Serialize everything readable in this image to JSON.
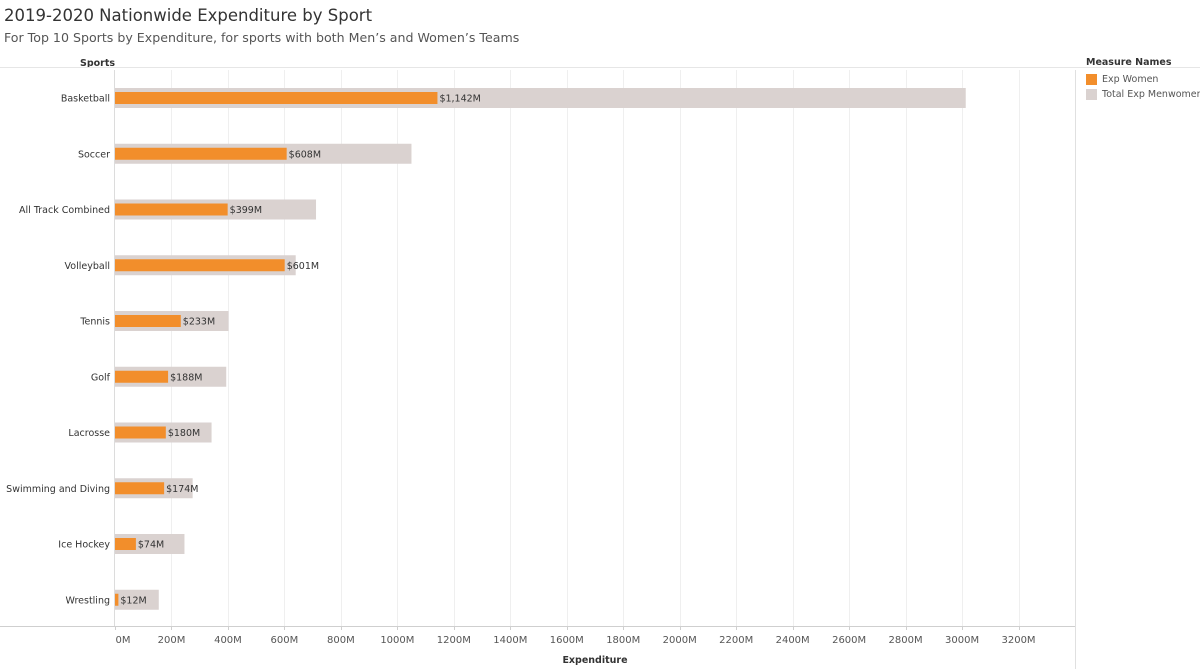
{
  "title": "2019-2020 Nationwide Expenditure by Sport",
  "subtitle": "For Top 10 Sports by Expenditure, for sports with both Men’s and Women’s Teams",
  "legend": {
    "title": "Measure Names",
    "items": [
      {
        "label": "Exp Women",
        "color": "#f28e2b"
      },
      {
        "label": "Total Exp Menwomen",
        "color": "#dad2d0"
      }
    ]
  },
  "chart_data": {
    "type": "bar",
    "orientation": "horizontal",
    "row_header": "Sports",
    "xlabel": "Expenditure",
    "xlim": [
      0,
      3400
    ],
    "xticks": [
      0,
      200,
      400,
      600,
      800,
      1000,
      1200,
      1400,
      1600,
      1800,
      2000,
      2200,
      2400,
      2600,
      2800,
      3000,
      3200
    ],
    "xtick_labels": [
      "0M",
      "200M",
      "400M",
      "600M",
      "800M",
      "1000M",
      "1200M",
      "1400M",
      "1600M",
      "1800M",
      "2000M",
      "2200M",
      "2400M",
      "2600M",
      "2800M",
      "3000M",
      "3200M"
    ],
    "grid": true,
    "legend_position": "right",
    "categories": [
      "Basketball",
      "Soccer",
      "All Track Combined",
      "Volleyball",
      "Tennis",
      "Golf",
      "Lacrosse",
      "Swimming and Diving",
      "Ice Hockey",
      "Wrestling"
    ],
    "series": [
      {
        "name": "Total Exp Menwomen",
        "color": "#dad2d0",
        "values": [
          3013,
          1050,
          712,
          640,
          402,
          394,
          342,
          275,
          246,
          155
        ]
      },
      {
        "name": "Exp Women",
        "color": "#f28e2b",
        "values": [
          1142,
          608,
          399,
          601,
          233,
          188,
          180,
          174,
          74,
          12
        ],
        "data_labels": [
          "$1,142M",
          "$608M",
          "$399M",
          "$601M",
          "$233M",
          "$188M",
          "$180M",
          "$174M",
          "$74M",
          "$12M"
        ]
      }
    ]
  }
}
